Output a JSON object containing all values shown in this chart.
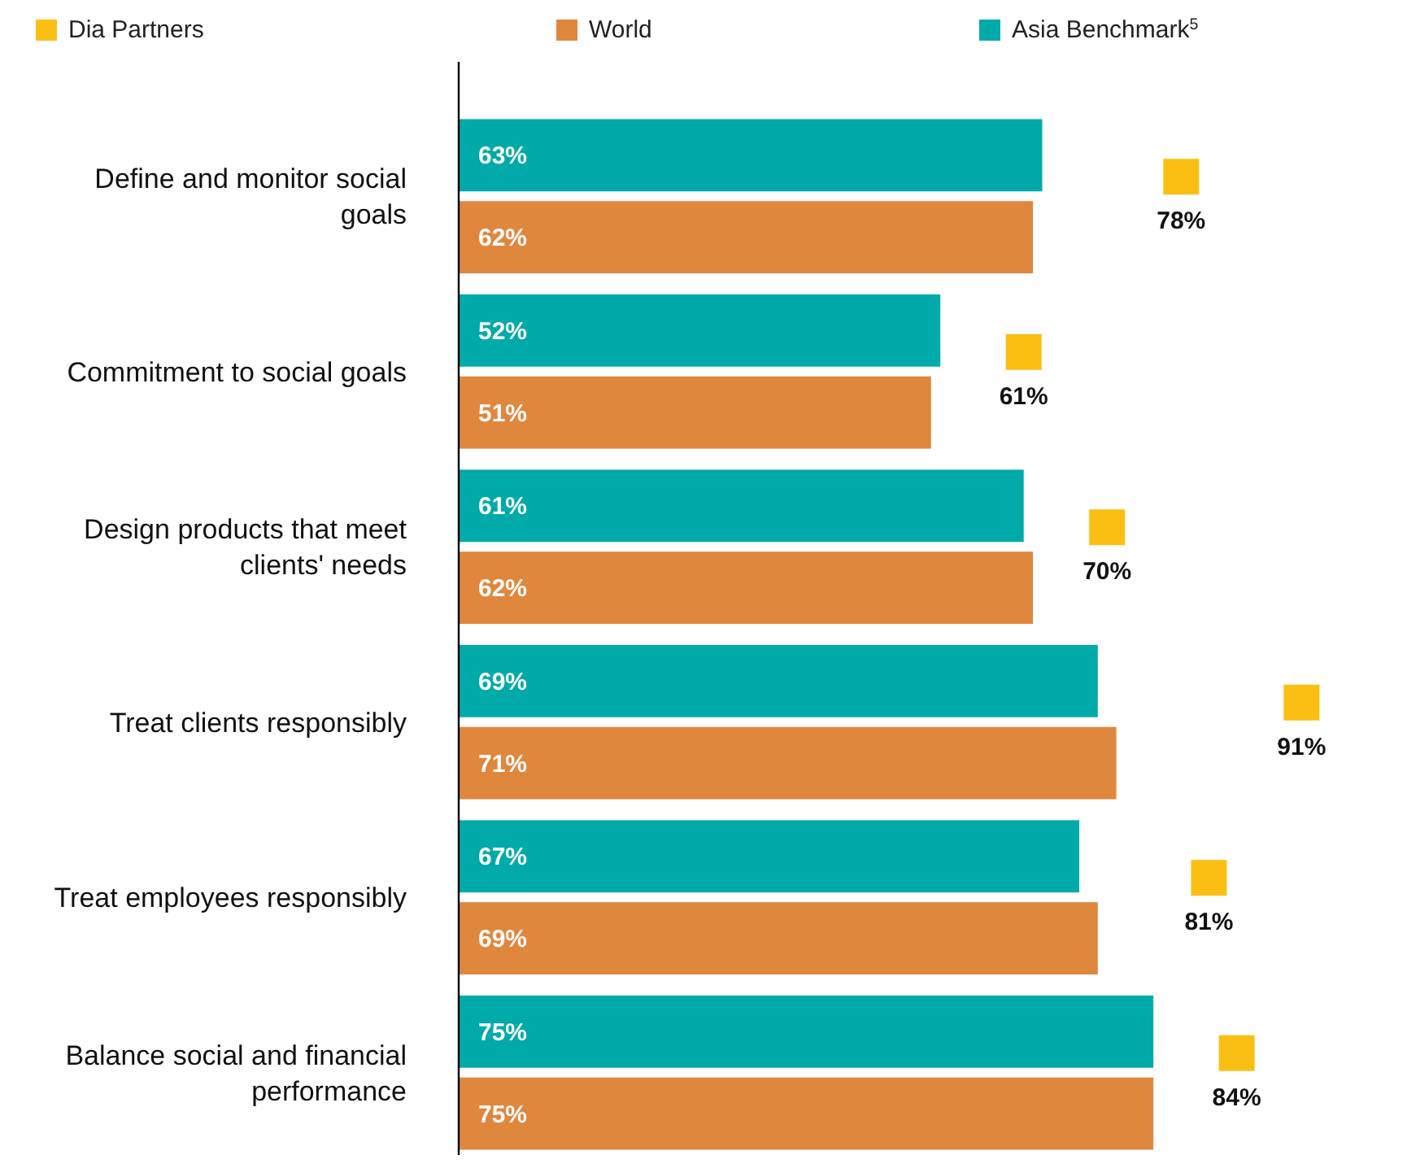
{
  "chart_data": {
    "type": "bar",
    "orientation": "horizontal",
    "tick_labels": "y",
    "legend": "top",
    "categories": [
      "Define and monitor social goals",
      "Commitment to social goals",
      "Design products that meet clients' needs",
      "Treat clients responsibly",
      "Treat employees responsibly",
      "Balance social and financial performance"
    ],
    "series": [
      {
        "name": "Dia Partners",
        "type": "scatter",
        "marker": "square",
        "color": "#fbbf14",
        "values": [
          78,
          61,
          70,
          91,
          81,
          84
        ],
        "value_labels": [
          "78%",
          "61%",
          "70%",
          "91%",
          "81%",
          "84%"
        ]
      },
      {
        "name": "World",
        "type": "bar",
        "color": "#e0873e",
        "values": [
          62,
          51,
          62,
          71,
          69,
          75
        ],
        "value_labels": [
          "62%",
          "51%",
          "62%",
          "71%",
          "69%",
          "75%"
        ]
      },
      {
        "name": "Asia Benchmark$^{5}$",
        "type": "bar",
        "color": "#00aaa9",
        "values": [
          63,
          52,
          61,
          69,
          67,
          75
        ],
        "value_labels": [
          "63%",
          "52%",
          "61%",
          "69%",
          "67%",
          "75%"
        ]
      }
    ]
  }
}
